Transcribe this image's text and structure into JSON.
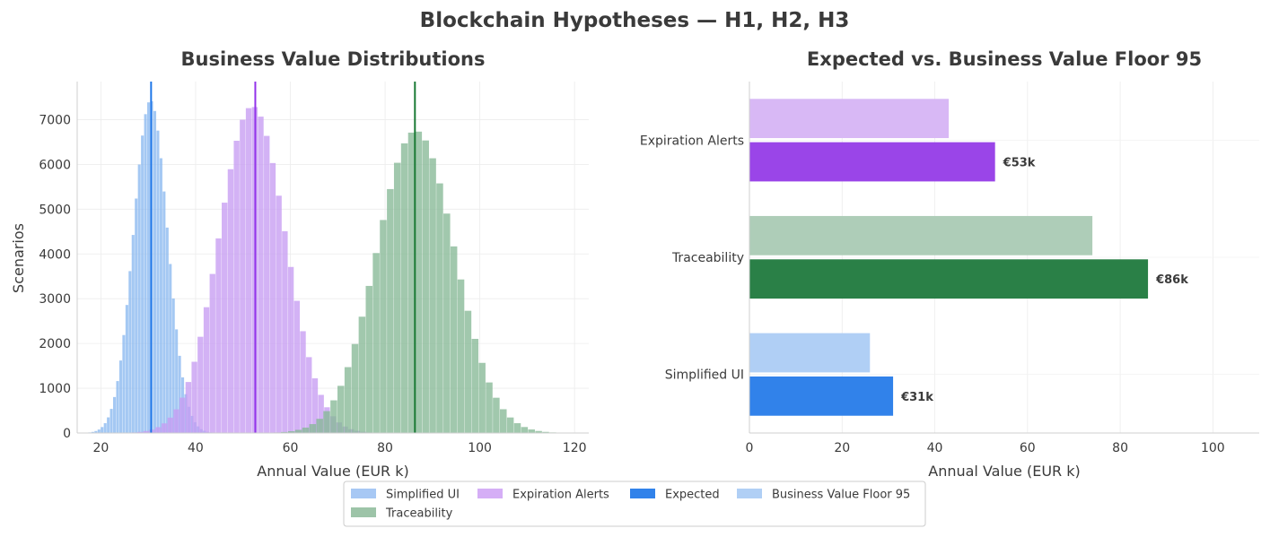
{
  "figure": {
    "suptitle": "Blockchain Hypotheses — H1, H2, H3"
  },
  "chart_data": [
    {
      "type": "histogram",
      "title": "Business Value Distributions",
      "xlabel": "Annual Value (EUR k)",
      "ylabel": "Scenarios",
      "xlim": [
        15,
        123
      ],
      "ylim": [
        0,
        7850
      ],
      "xticks": [
        20,
        40,
        60,
        80,
        100,
        120
      ],
      "yticks": [
        0,
        1000,
        2000,
        3000,
        4000,
        5000,
        6000,
        7000
      ],
      "grid": true,
      "series": [
        {
          "name": "Simplified UI",
          "color": "#8ab8f0",
          "line_color": "#1f77e8",
          "mean": 30.5,
          "sd": 3.6,
          "peak": 7430,
          "expected": 30.6
        },
        {
          "name": "Expiration Alerts",
          "color": "#c69cf2",
          "line_color": "#9333ea",
          "mean": 52.0,
          "sd": 7.0,
          "peak": 7300,
          "expected": 52.6
        },
        {
          "name": "Traceability",
          "color": "#86b896",
          "line_color": "#1a7a35",
          "mean": 86.5,
          "sd": 8.2,
          "peak": 6750,
          "expected": 86.3
        }
      ]
    },
    {
      "type": "bar",
      "orientation": "horizontal",
      "title": "Expected vs. Business Value Floor 95",
      "xlabel": "Annual Value (EUR k)",
      "xlim": [
        0,
        110
      ],
      "xticks": [
        0,
        20,
        40,
        60,
        80,
        100
      ],
      "grid": true,
      "categories": [
        "Expiration Alerts",
        "Traceability",
        "Simplified UI"
      ],
      "series": [
        {
          "name": "Business Value Floor 95",
          "values": [
            43,
            74,
            26
          ],
          "colors": [
            "#d8b8f5",
            "#aecdb8",
            "#b0cff5"
          ]
        },
        {
          "name": "Expected",
          "values": [
            53,
            86,
            31
          ],
          "colors": [
            "#9a45e8",
            "#2a8047",
            "#3182ea"
          ]
        }
      ],
      "data_labels": [
        "€53k",
        "€86k",
        "€31k"
      ]
    }
  ],
  "legend": {
    "placement": "bottom-center",
    "items": [
      {
        "label": "Simplified UI",
        "color": "#a7c8f4"
      },
      {
        "label": "Expiration Alerts",
        "color": "#d5aef6"
      },
      {
        "label": "Expected",
        "color": "#3182ea"
      },
      {
        "label": "Business Value Floor 95",
        "color": "#b0cff5"
      },
      {
        "label": "Traceability",
        "color": "#9dc4a8"
      }
    ]
  }
}
